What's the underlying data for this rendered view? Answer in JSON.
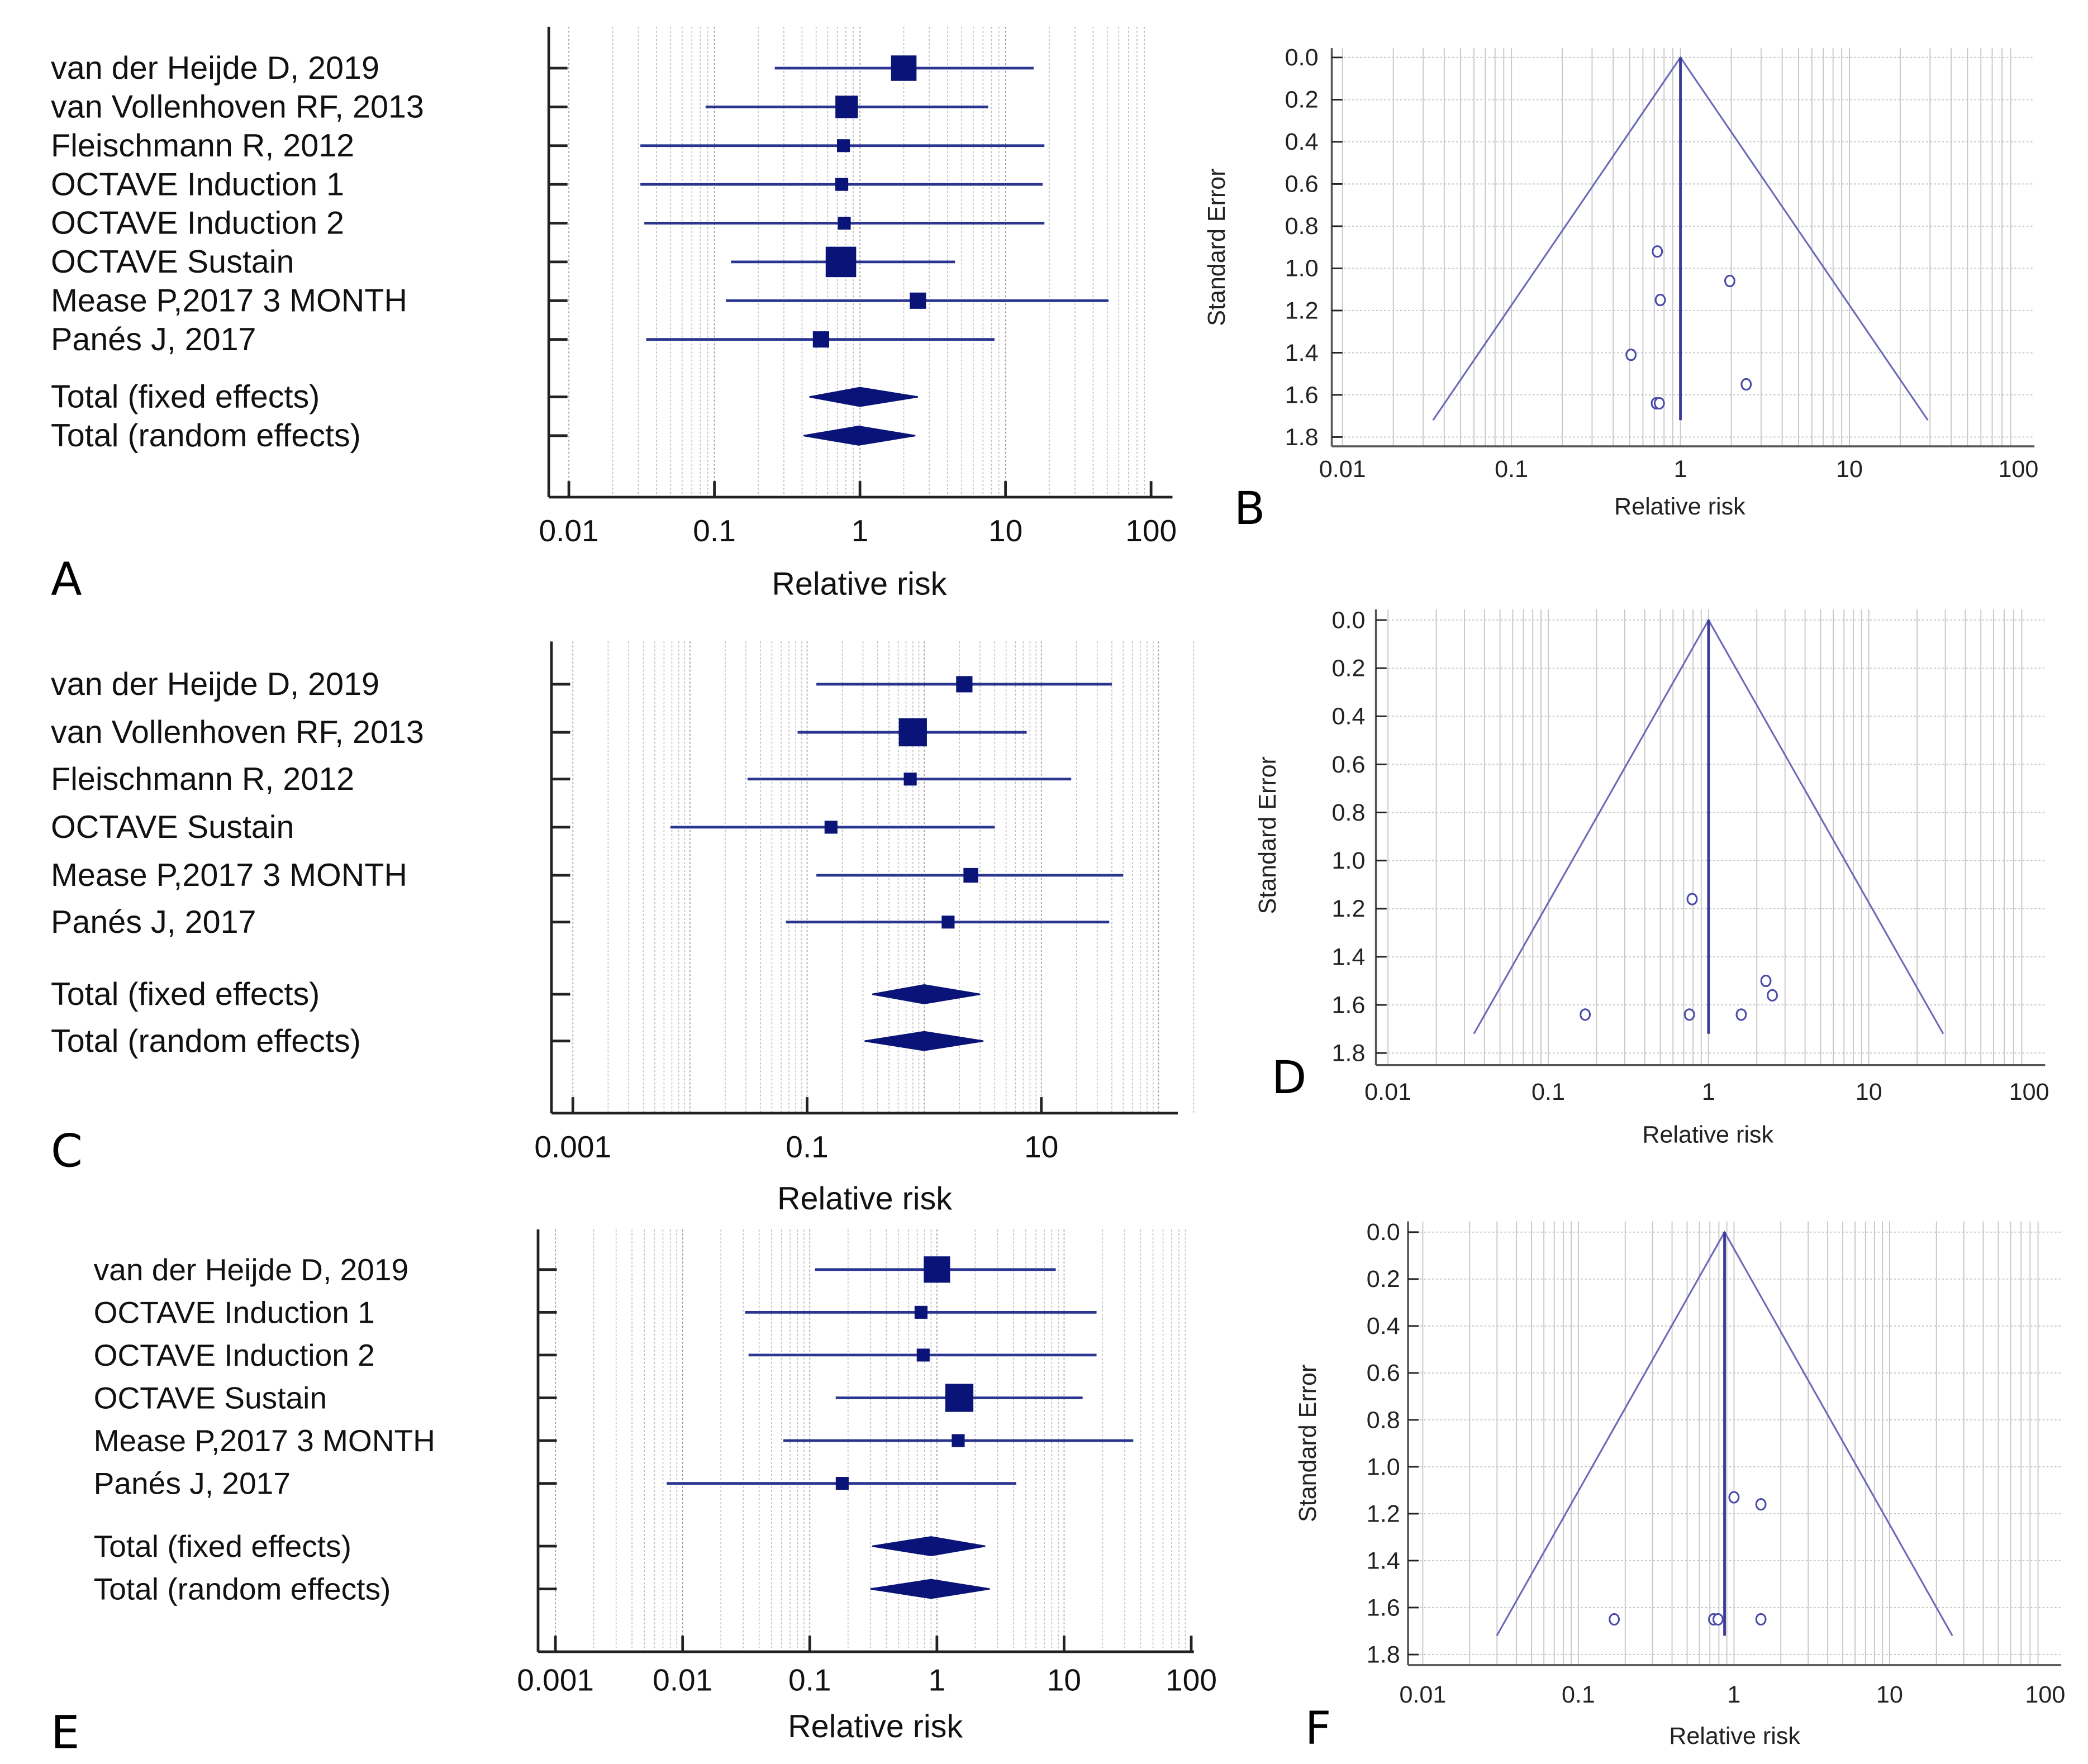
{
  "colors": {
    "marker": "#0a1478",
    "funnel": "#6a6ab8",
    "grid": "#bdbdbd"
  },
  "chart_data": [
    {
      "id": "A",
      "type": "forest",
      "panel_label": "A",
      "xlabel": "Relative risk",
      "xscale": "log",
      "xlim": [
        0.01,
        100
      ],
      "xticks": [
        "0.01",
        "0.1",
        "1",
        "10",
        "100"
      ],
      "xtick_values": [
        0.01,
        0.1,
        1,
        10,
        100
      ],
      "studies": [
        {
          "label": "van der Heijde D, 2019",
          "rr": 2.0,
          "lo": 0.26,
          "hi": 15.6,
          "weight": 13
        },
        {
          "label": "van Vollenhoven RF,  2013",
          "rr": 0.81,
          "lo": 0.087,
          "hi": 7.6,
          "weight": 10
        },
        {
          "label": "Fleischmann R,  2012",
          "rr": 0.77,
          "lo": 0.031,
          "hi": 18.5,
          "weight": 3
        },
        {
          "label": "OCTAVE Induction 1",
          "rr": 0.75,
          "lo": 0.031,
          "hi": 18,
          "weight": 3
        },
        {
          "label": "OCTAVE Induction 2",
          "rr": 0.78,
          "lo": 0.033,
          "hi": 18.5,
          "weight": 3
        },
        {
          "label": "OCTAVE Sustain",
          "rr": 0.74,
          "lo": 0.13,
          "hi": 4.5,
          "weight": 19
        },
        {
          "label": "Mease P,2017 3 MONTH",
          "rr": 2.5,
          "lo": 0.12,
          "hi": 51,
          "weight": 5
        },
        {
          "label": "Panés J, 2017",
          "rr": 0.54,
          "lo": 0.034,
          "hi": 8.4,
          "weight": 5
        }
      ],
      "totals": [
        {
          "label": "Total (fixed effects)",
          "rr": 1.0,
          "lo": 0.45,
          "hi": 2.5
        },
        {
          "label": "Total (random effects)",
          "rr": 0.98,
          "lo": 0.41,
          "hi": 2.4
        }
      ]
    },
    {
      "id": "B",
      "type": "scatter",
      "subtype": "funnel",
      "panel_label": "B",
      "xlabel": "Relative risk",
      "ylabel": "Standard Error",
      "xscale": "log",
      "xlim": [
        0.01,
        100
      ],
      "ylim": [
        1.8,
        0.0
      ],
      "xticks": [
        "0.01",
        "0.1",
        "1",
        "10",
        "100"
      ],
      "xtick_values": [
        0.01,
        0.1,
        1,
        10,
        100
      ],
      "yticks": [
        "0.0",
        "0.2",
        "0.4",
        "0.6",
        "0.8",
        "1.0",
        "1.2",
        "1.4",
        "1.6",
        "1.8"
      ],
      "pooled_rr": 1.0,
      "funnel_max_se": 1.72,
      "grid": true,
      "points": [
        {
          "rr": 0.73,
          "se": 0.92
        },
        {
          "rr": 1.96,
          "se": 1.06
        },
        {
          "rr": 0.76,
          "se": 1.15
        },
        {
          "rr": 0.51,
          "se": 1.41
        },
        {
          "rr": 2.45,
          "se": 1.55
        },
        {
          "rr": 0.72,
          "se": 1.64
        },
        {
          "rr": 0.75,
          "se": 1.64
        }
      ]
    },
    {
      "id": "C",
      "type": "forest",
      "panel_label": "C",
      "xlabel": "Relative risk",
      "xscale": "log",
      "xlim": [
        0.001,
        100
      ],
      "xticks": [
        "0.001",
        "0.1",
        "10"
      ],
      "xtick_values": [
        0.001,
        0.1,
        10
      ],
      "studies": [
        {
          "label": "van der Heijde D, 2019",
          "rr": 2.2,
          "lo": 0.12,
          "hi": 40,
          "weight": 5
        },
        {
          "label": "van Vollenhoven RF,  2013",
          "rr": 0.8,
          "lo": 0.083,
          "hi": 7.5,
          "weight": 16
        },
        {
          "label": "Fleischmann R,  2012",
          "rr": 0.76,
          "lo": 0.031,
          "hi": 18,
          "weight": 3
        },
        {
          "label": "OCTAVE Sustain",
          "rr": 0.16,
          "lo": 0.0068,
          "hi": 4.0,
          "weight": 3
        },
        {
          "label": "Mease P,2017 3 MONTH",
          "rr": 2.5,
          "lo": 0.12,
          "hi": 50,
          "weight": 4
        },
        {
          "label": "Panés J, 2017",
          "rr": 1.6,
          "lo": 0.066,
          "hi": 38,
          "weight": 3
        }
      ],
      "totals": [
        {
          "label": "Total (fixed effects)",
          "rr": 1.0,
          "lo": 0.36,
          "hi": 3.0
        },
        {
          "label": "Total (random effects)",
          "rr": 1.0,
          "lo": 0.31,
          "hi": 3.2
        }
      ]
    },
    {
      "id": "D",
      "type": "scatter",
      "subtype": "funnel",
      "panel_label": "D",
      "xlabel": "Relative risk",
      "ylabel": "Standard Error",
      "xscale": "log",
      "xlim": [
        0.01,
        100
      ],
      "ylim": [
        1.8,
        0.0
      ],
      "xticks": [
        "0.01",
        "0.1",
        "1",
        "10",
        "100"
      ],
      "xtick_values": [
        0.01,
        0.1,
        1,
        10,
        100
      ],
      "yticks": [
        "0.0",
        "0.2",
        "0.4",
        "0.6",
        "0.8",
        "1.0",
        "1.2",
        "1.4",
        "1.6",
        "1.8"
      ],
      "pooled_rr": 1.0,
      "funnel_max_se": 1.72,
      "grid": true,
      "points": [
        {
          "rr": 0.79,
          "se": 1.16
        },
        {
          "rr": 0.17,
          "se": 1.64
        },
        {
          "rr": 0.76,
          "se": 1.64
        },
        {
          "rr": 1.6,
          "se": 1.64
        },
        {
          "rr": 2.28,
          "se": 1.5
        },
        {
          "rr": 2.5,
          "se": 1.56
        }
      ]
    },
    {
      "id": "E",
      "type": "forest",
      "panel_label": "E",
      "xlabel": "Relative risk",
      "xscale": "log",
      "xlim": [
        0.001,
        100
      ],
      "xticks": [
        "0.001",
        "0.01",
        "0.1",
        "1",
        "10",
        "100"
      ],
      "xtick_values": [
        0.001,
        0.01,
        0.1,
        1,
        10,
        100
      ],
      "studies": [
        {
          "label": "van der Heijde D, 2019",
          "rr": 1.0,
          "lo": 0.11,
          "hi": 8.6,
          "weight": 14
        },
        {
          "label": "OCTAVE Induction 1",
          "rr": 0.75,
          "lo": 0.031,
          "hi": 18,
          "weight": 3
        },
        {
          "label": "OCTAVE Induction 2",
          "rr": 0.78,
          "lo": 0.033,
          "hi": 18,
          "weight": 3
        },
        {
          "label": "OCTAVE Sustain",
          "rr": 1.5,
          "lo": 0.16,
          "hi": 14,
          "weight": 16
        },
        {
          "label": "Mease P,2017 3 MONTH",
          "rr": 1.47,
          "lo": 0.062,
          "hi": 35,
          "weight": 3
        },
        {
          "label": "Panés J, 2017",
          "rr": 0.18,
          "lo": 0.0075,
          "hi": 4.2,
          "weight": 3
        }
      ],
      "totals": [
        {
          "label": "Total (fixed effects)",
          "rr": 0.9,
          "lo": 0.31,
          "hi": 2.4
        },
        {
          "label": "Total (random effects)",
          "rr": 0.9,
          "lo": 0.3,
          "hi": 2.6
        }
      ]
    },
    {
      "id": "F",
      "type": "scatter",
      "subtype": "funnel",
      "panel_label": "F",
      "xlabel": "Relative risk",
      "ylabel": "Standard Error",
      "xscale": "log",
      "xlim": [
        0.01,
        100
      ],
      "ylim": [
        1.8,
        0.0
      ],
      "xticks": [
        "0.01",
        "0.1",
        "1",
        "10",
        "100"
      ],
      "xtick_values": [
        0.01,
        0.1,
        1,
        10,
        100
      ],
      "yticks": [
        "0.0",
        "0.2",
        "0.4",
        "0.6",
        "0.8",
        "1.0",
        "1.2",
        "1.4",
        "1.6",
        "1.8"
      ],
      "pooled_rr": 0.87,
      "funnel_max_se": 1.72,
      "grid": true,
      "points": [
        {
          "rr": 1.0,
          "se": 1.13
        },
        {
          "rr": 1.49,
          "se": 1.16
        },
        {
          "rr": 0.17,
          "se": 1.65
        },
        {
          "rr": 0.74,
          "se": 1.65
        },
        {
          "rr": 0.79,
          "se": 1.65
        },
        {
          "rr": 1.49,
          "se": 1.65
        }
      ]
    }
  ]
}
